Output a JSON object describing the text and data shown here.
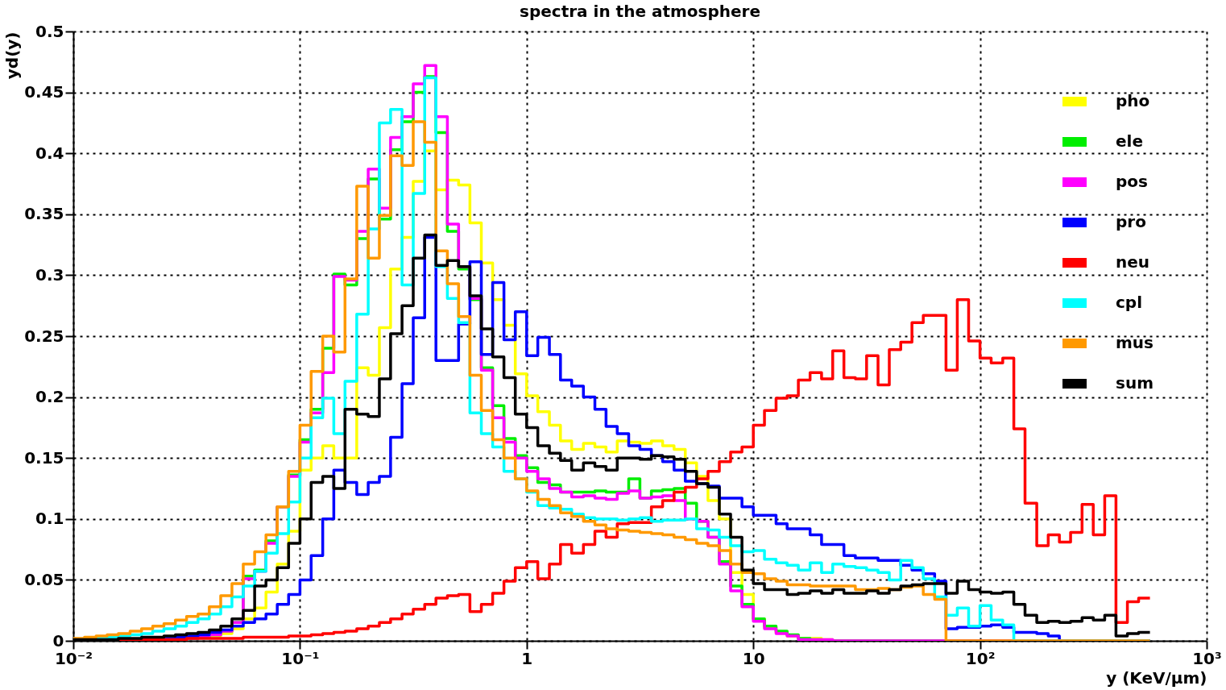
{
  "chart_data": {
    "type": "histogram",
    "title": "spectra in the atmosphere",
    "xlabel": "y (KeV/µm)",
    "ylabel": "yd(y)",
    "log": "x",
    "grid": true,
    "legend": "top right",
    "line_style": "solid",
    "xlim": [
      0.01,
      1000
    ],
    "xticks": [
      {
        "value": 0.01,
        "label": "10⁻²"
      },
      {
        "value": 0.1,
        "label": "10⁻¹"
      },
      1,
      10,
      {
        "value": 100,
        "label": "10²"
      },
      {
        "value": 1000,
        "label": "10³"
      }
    ],
    "ylim": [
      0,
      0.5
    ],
    "yticks": [
      0,
      0.05,
      0.1,
      0.15,
      0.2,
      0.25,
      0.3,
      0.35,
      0.4,
      0.45,
      0.5
    ],
    "bins": [
      0.01,
      0.0112,
      0.0126,
      0.0141,
      0.0158,
      0.0178,
      0.02,
      0.0224,
      0.0251,
      0.0282,
      0.0316,
      0.0355,
      0.0398,
      0.0447,
      0.0501,
      0.0562,
      0.0631,
      0.0708,
      0.0794,
      0.0891,
      0.1,
      0.112,
      0.126,
      0.141,
      0.158,
      0.178,
      0.2,
      0.224,
      0.251,
      0.282,
      0.316,
      0.355,
      0.398,
      0.447,
      0.501,
      0.562,
      0.631,
      0.708,
      0.794,
      0.891,
      1,
      1.12,
      1.26,
      1.41,
      1.58,
      1.78,
      2,
      2.24,
      2.51,
      2.82,
      3.16,
      3.55,
      3.98,
      4.47,
      5.01,
      5.62,
      6.31,
      7.08,
      7.94,
      8.91,
      10,
      11.2,
      12.6,
      14.1,
      15.8,
      17.8,
      20,
      22.4,
      25.1,
      28.2,
      31.6,
      35.5,
      39.8,
      44.7,
      50.1,
      56.2,
      63.1,
      70.8,
      79.4,
      89.1,
      100,
      112,
      126,
      141,
      158,
      178,
      200,
      224,
      251,
      282,
      316,
      355,
      398,
      447,
      501,
      562
    ],
    "series": [
      {
        "name": "pho",
        "color": "#ffff00",
        "values": [
          0.001,
          0.001,
          0.001,
          0.001,
          0.001,
          0.001,
          0.001,
          0.001,
          0.001,
          0.001,
          0.002,
          0.003,
          0.004,
          0.006,
          0.01,
          0.018,
          0.027,
          0.04,
          0.063,
          0.09,
          0.14,
          0.15,
          0.16,
          0.15,
          0.15,
          0.224,
          0.218,
          0.257,
          0.305,
          0.331,
          0.377,
          0.402,
          0.37,
          0.378,
          0.374,
          0.343,
          0.31,
          0.28,
          0.259,
          0.219,
          0.201,
          0.188,
          0.177,
          0.164,
          0.157,
          0.162,
          0.159,
          0.155,
          0.164,
          0.163,
          0.162,
          0.164,
          0.16,
          0.157,
          0.146,
          0.135,
          0.115,
          0.1,
          0.056,
          0.038,
          0.018,
          0.011,
          0.007,
          0.004,
          0.002,
          0.002,
          0.001,
          0,
          0,
          0,
          0,
          0,
          0,
          0,
          0,
          0,
          0,
          0,
          0,
          0,
          0,
          0,
          0,
          0,
          0,
          0,
          0,
          0,
          0,
          0,
          0,
          0,
          0,
          0,
          0
        ]
      },
      {
        "name": "ele",
        "color": "#00ee00",
        "values": [
          0.001,
          0.001,
          0.001,
          0.001,
          0.001,
          0.001,
          0.001,
          0.001,
          0.001,
          0.001,
          0.002,
          0.003,
          0.005,
          0.008,
          0.015,
          0.053,
          0.058,
          0.082,
          0.11,
          0.136,
          0.165,
          0.19,
          0.24,
          0.301,
          0.292,
          0.33,
          0.379,
          0.346,
          0.403,
          0.426,
          0.45,
          0.463,
          0.417,
          0.336,
          0.305,
          0.28,
          0.224,
          0.193,
          0.166,
          0.152,
          0.142,
          0.13,
          0.128,
          0.122,
          0.122,
          0.122,
          0.123,
          0.122,
          0.122,
          0.133,
          0.117,
          0.123,
          0.124,
          0.125,
          0.113,
          0.098,
          0.085,
          0.065,
          0.045,
          0.03,
          0.018,
          0.012,
          0.008,
          0.005,
          0.002,
          0.001,
          0,
          0,
          0,
          0,
          0,
          0,
          0,
          0,
          0,
          0,
          0,
          0,
          0,
          0,
          0,
          0,
          0,
          0,
          0,
          0,
          0,
          0,
          0,
          0,
          0,
          0,
          0,
          0,
          0
        ]
      },
      {
        "name": "pos",
        "color": "#ff00ff",
        "values": [
          0.001,
          0.001,
          0.001,
          0.001,
          0.001,
          0.001,
          0.001,
          0.001,
          0.001,
          0.001,
          0.002,
          0.003,
          0.005,
          0.008,
          0.015,
          0.051,
          0.057,
          0.08,
          0.11,
          0.135,
          0.163,
          0.187,
          0.22,
          0.299,
          0.296,
          0.336,
          0.387,
          0.355,
          0.413,
          0.43,
          0.457,
          0.472,
          0.43,
          0.342,
          0.307,
          0.281,
          0.222,
          0.183,
          0.163,
          0.15,
          0.139,
          0.133,
          0.125,
          0.122,
          0.118,
          0.119,
          0.117,
          0.116,
          0.121,
          0.123,
          0.117,
          0.118,
          0.119,
          0.115,
          0.1,
          0.098,
          0.085,
          0.063,
          0.041,
          0.028,
          0.016,
          0.01,
          0.006,
          0.004,
          0.001,
          0.001,
          0.001,
          0,
          0,
          0,
          0,
          0,
          0,
          0,
          0,
          0,
          0,
          0,
          0,
          0,
          0,
          0,
          0,
          0,
          0,
          0,
          0,
          0,
          0,
          0,
          0,
          0,
          0,
          0,
          0
        ]
      },
      {
        "name": "pro",
        "color": "#0000ff",
        "values": [
          0.001,
          0.001,
          0.001,
          0.001,
          0.001,
          0.001,
          0.001,
          0.001,
          0.002,
          0.003,
          0.004,
          0.005,
          0.007,
          0.009,
          0.012,
          0.015,
          0.018,
          0.022,
          0.03,
          0.038,
          0.05,
          0.07,
          0.1,
          0.14,
          0.13,
          0.12,
          0.13,
          0.135,
          0.167,
          0.211,
          0.265,
          0.331,
          0.23,
          0.23,
          0.26,
          0.311,
          0.235,
          0.294,
          0.247,
          0.27,
          0.234,
          0.249,
          0.235,
          0.214,
          0.209,
          0.2,
          0.19,
          0.176,
          0.17,
          0.16,
          0.157,
          0.152,
          0.147,
          0.14,
          0.131,
          0.129,
          0.127,
          0.117,
          0.117,
          0.11,
          0.103,
          0.103,
          0.096,
          0.092,
          0.092,
          0.087,
          0.079,
          0.079,
          0.07,
          0.068,
          0.068,
          0.066,
          0.066,
          0.062,
          0.058,
          0.055,
          0.049,
          0.01,
          0.011,
          0.011,
          0.012,
          0.013,
          0.011,
          0.007,
          0.007,
          0.006,
          0.004,
          0,
          0,
          0,
          0,
          0,
          0,
          0,
          0
        ]
      },
      {
        "name": "neu",
        "color": "#ff0000",
        "values": [
          0.001,
          0.001,
          0.001,
          0.001,
          0.001,
          0.001,
          0.001,
          0.001,
          0.001,
          0.001,
          0.002,
          0.002,
          0.002,
          0.002,
          0.002,
          0.003,
          0.003,
          0.003,
          0.003,
          0.004,
          0.004,
          0.005,
          0.006,
          0.007,
          0.008,
          0.01,
          0.012,
          0.015,
          0.018,
          0.022,
          0.026,
          0.03,
          0.035,
          0.037,
          0.038,
          0.024,
          0.03,
          0.039,
          0.049,
          0.06,
          0.065,
          0.051,
          0.063,
          0.079,
          0.072,
          0.079,
          0.09,
          0.085,
          0.096,
          0.097,
          0.097,
          0.11,
          0.115,
          0.122,
          0.126,
          0.133,
          0.139,
          0.147,
          0.155,
          0.159,
          0.177,
          0.189,
          0.199,
          0.201,
          0.214,
          0.22,
          0.215,
          0.238,
          0.216,
          0.215,
          0.234,
          0.21,
          0.239,
          0.245,
          0.261,
          0.267,
          0.267,
          0.222,
          0.28,
          0.246,
          0.232,
          0.228,
          0.232,
          0.174,
          0.113,
          0.078,
          0.087,
          0.081,
          0.089,
          0.112,
          0.087,
          0.119,
          0.015,
          0.032,
          0.035
        ]
      },
      {
        "name": "cpl",
        "color": "#00ffff",
        "values": [
          0.001,
          0.001,
          0.002,
          0.003,
          0.004,
          0.005,
          0.006,
          0.008,
          0.01,
          0.012,
          0.015,
          0.018,
          0.022,
          0.028,
          0.036,
          0.045,
          0.057,
          0.072,
          0.088,
          0.114,
          0.15,
          0.183,
          0.199,
          0.17,
          0.213,
          0.268,
          0.338,
          0.425,
          0.436,
          0.292,
          0.367,
          0.462,
          0.307,
          0.281,
          0.261,
          0.187,
          0.17,
          0.159,
          0.139,
          0.133,
          0.122,
          0.111,
          0.109,
          0.108,
          0.104,
          0.101,
          0.1,
          0.1,
          0.099,
          0.1,
          0.101,
          0.098,
          0.099,
          0.099,
          0.1,
          0.092,
          0.091,
          0.085,
          0.078,
          0.073,
          0.074,
          0.067,
          0.064,
          0.062,
          0.058,
          0.064,
          0.056,
          0.063,
          0.061,
          0.06,
          0.058,
          0.056,
          0.05,
          0.066,
          0.06,
          0.051,
          0.036,
          0.021,
          0.027,
          0.012,
          0.029,
          0.017,
          0.013,
          0,
          0,
          0,
          0,
          0,
          0,
          0,
          0,
          0,
          0,
          0,
          0
        ]
      },
      {
        "name": "mus",
        "color": "#ff9900",
        "values": [
          0.002,
          0.003,
          0.004,
          0.005,
          0.006,
          0.008,
          0.01,
          0.012,
          0.014,
          0.017,
          0.02,
          0.022,
          0.028,
          0.037,
          0.047,
          0.063,
          0.073,
          0.087,
          0.11,
          0.139,
          0.177,
          0.221,
          0.25,
          0.237,
          0.297,
          0.373,
          0.314,
          0.349,
          0.398,
          0.39,
          0.426,
          0.409,
          0.32,
          0.293,
          0.266,
          0.218,
          0.189,
          0.165,
          0.15,
          0.133,
          0.123,
          0.116,
          0.111,
          0.105,
          0.102,
          0.098,
          0.095,
          0.092,
          0.091,
          0.09,
          0.089,
          0.088,
          0.087,
          0.085,
          0.083,
          0.08,
          0.078,
          0.074,
          0.063,
          0.056,
          0.055,
          0.051,
          0.049,
          0.046,
          0.046,
          0.045,
          0.045,
          0.045,
          0.045,
          0.042,
          0.042,
          0.043,
          0.042,
          0.044,
          0.045,
          0.038,
          0.034,
          0,
          0,
          0,
          0,
          0,
          0,
          0,
          0,
          0,
          0,
          0,
          0,
          0,
          0,
          0,
          0,
          0,
          0
        ]
      },
      {
        "name": "sum",
        "color": "#000000",
        "values": [
          0.001,
          0.001,
          0.001,
          0.001,
          0.002,
          0.002,
          0.003,
          0.003,
          0.004,
          0.005,
          0.006,
          0.007,
          0.009,
          0.012,
          0.018,
          0.025,
          0.045,
          0.05,
          0.06,
          0.08,
          0.1,
          0.13,
          0.135,
          0.125,
          0.19,
          0.186,
          0.184,
          0.215,
          0.252,
          0.275,
          0.314,
          0.333,
          0.308,
          0.312,
          0.307,
          0.283,
          0.256,
          0.233,
          0.216,
          0.186,
          0.175,
          0.16,
          0.154,
          0.148,
          0.14,
          0.146,
          0.143,
          0.14,
          0.15,
          0.15,
          0.149,
          0.152,
          0.151,
          0.149,
          0.139,
          0.129,
          0.126,
          0.104,
          0.085,
          0.058,
          0.047,
          0.042,
          0.042,
          0.038,
          0.039,
          0.041,
          0.039,
          0.042,
          0.039,
          0.039,
          0.041,
          0.039,
          0.042,
          0.045,
          0.046,
          0.047,
          0.047,
          0.039,
          0.049,
          0.042,
          0.04,
          0.039,
          0.04,
          0.03,
          0.021,
          0.015,
          0.016,
          0.015,
          0.016,
          0.019,
          0.017,
          0.021,
          0.004,
          0.006,
          0.007
        ]
      }
    ]
  }
}
